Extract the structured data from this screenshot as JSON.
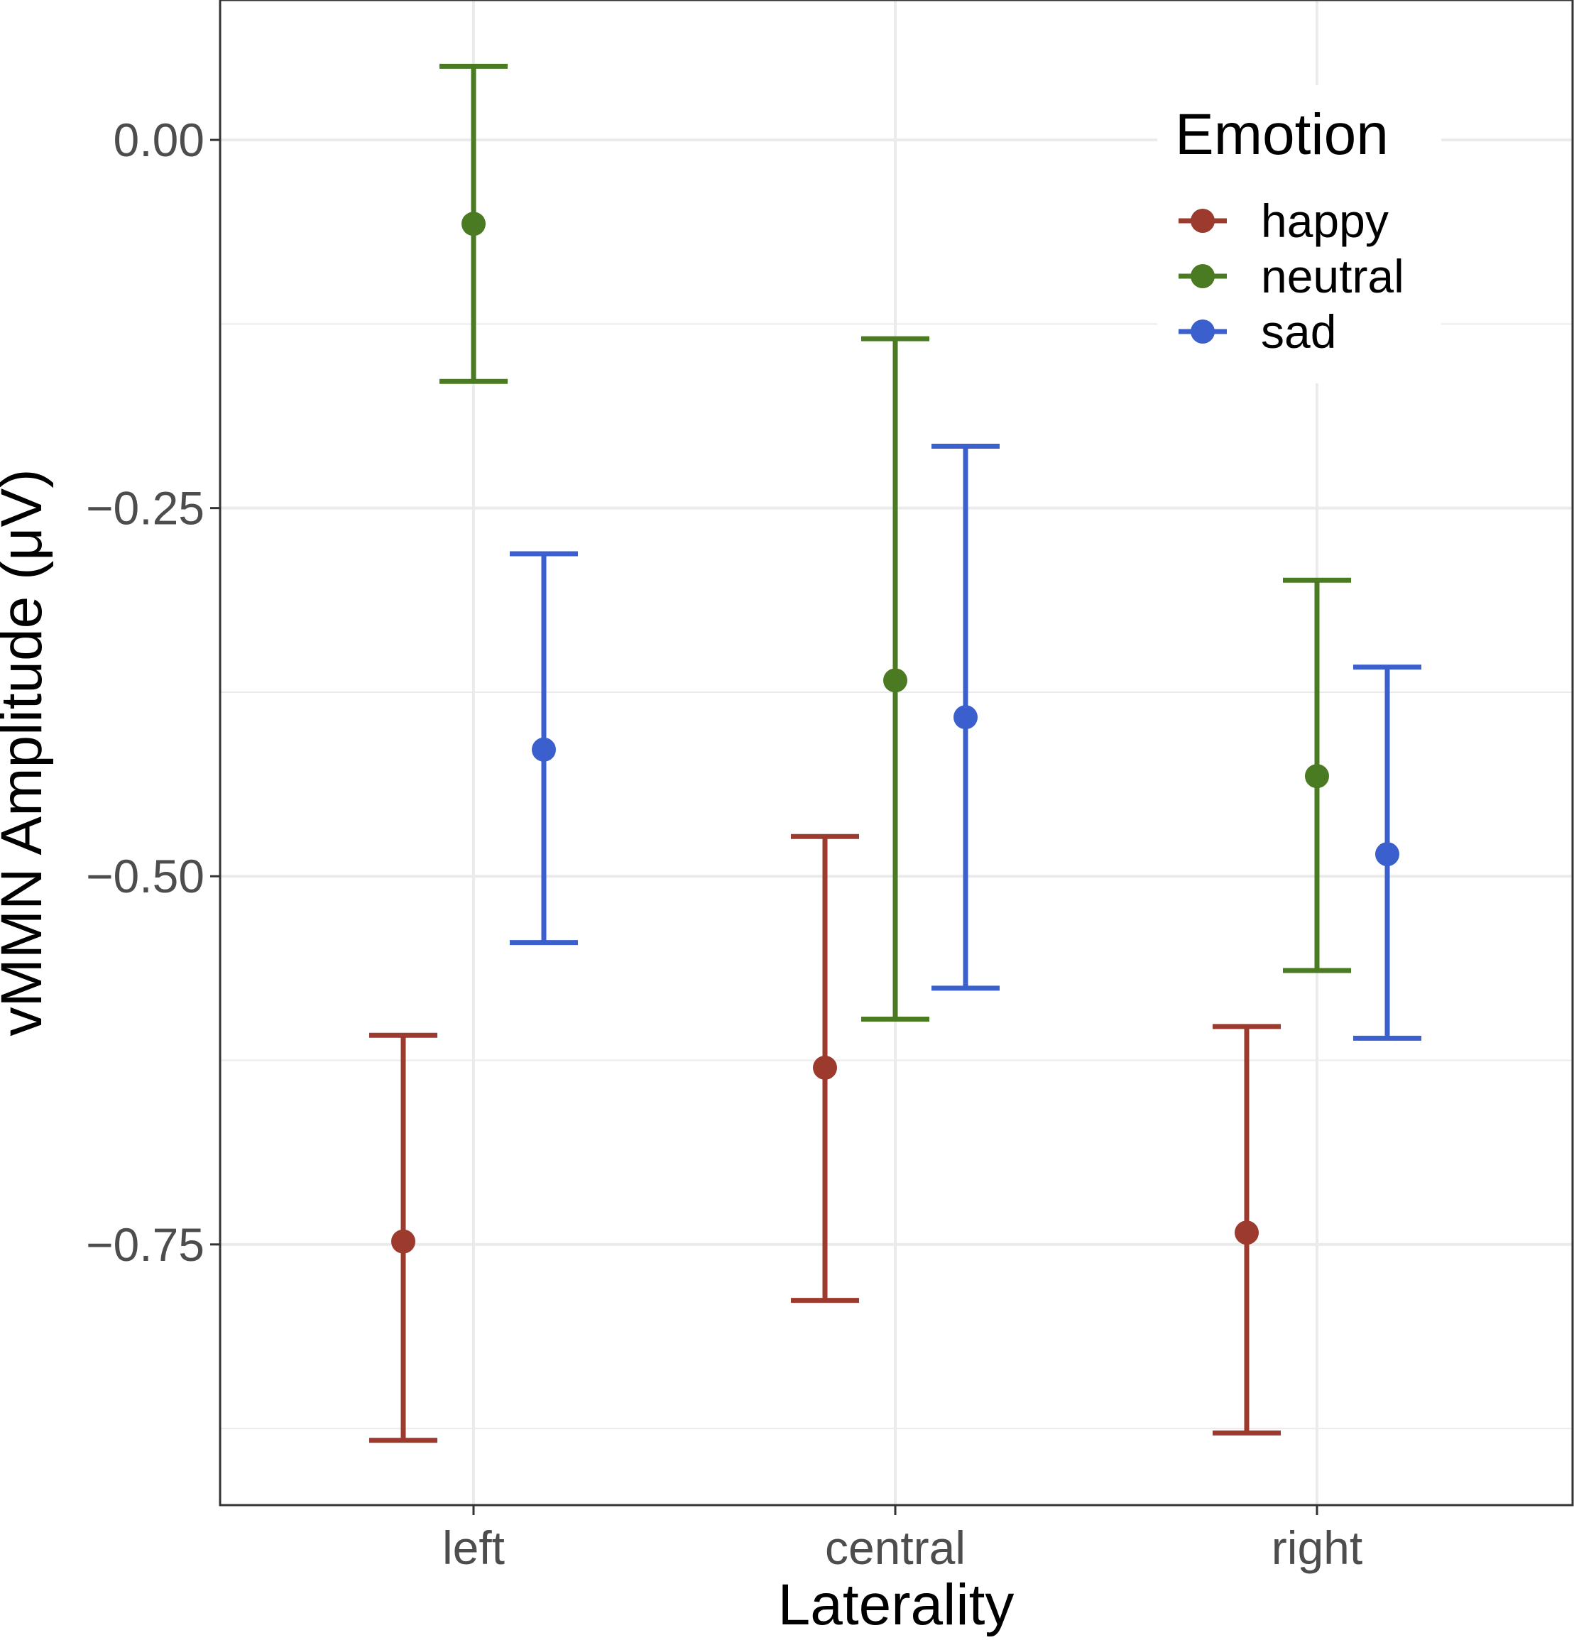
{
  "chart_data": {
    "type": "scatter",
    "subtype": "point-with-errorbars",
    "title": "",
    "xlabel": "Laterality",
    "ylabel": "vMMN Amplitude (μV)",
    "categories": [
      "left",
      "central",
      "right"
    ],
    "ylim": [
      -0.927,
      0.095
    ],
    "yticks": [
      0.0,
      -0.25,
      -0.5,
      -0.75
    ],
    "ytick_labels": [
      "0.00",
      "−0.25",
      "−0.50",
      "−0.75"
    ],
    "grid": true,
    "legend": {
      "title": "Emotion",
      "position": "top-right",
      "entries": [
        "happy",
        "neutral",
        "sad"
      ]
    },
    "series": [
      {
        "name": "happy",
        "color": "#9c3a2e",
        "values": [
          -0.748,
          -0.63,
          -0.742
        ],
        "lower": [
          -0.883,
          -0.788,
          -0.878
        ],
        "upper": [
          -0.608,
          -0.473,
          -0.602
        ]
      },
      {
        "name": "neutral",
        "color": "#4a7a22",
        "values": [
          -0.057,
          -0.367,
          -0.432
        ],
        "lower": [
          -0.164,
          -0.597,
          -0.564
        ],
        "upper": [
          0.05,
          -0.135,
          -0.299
        ]
      },
      {
        "name": "sad",
        "color": "#3b5fcc",
        "values": [
          -0.414,
          -0.392,
          -0.485
        ],
        "lower": [
          -0.545,
          -0.576,
          -0.61
        ],
        "upper": [
          -0.281,
          -0.208,
          -0.358
        ]
      }
    ]
  }
}
